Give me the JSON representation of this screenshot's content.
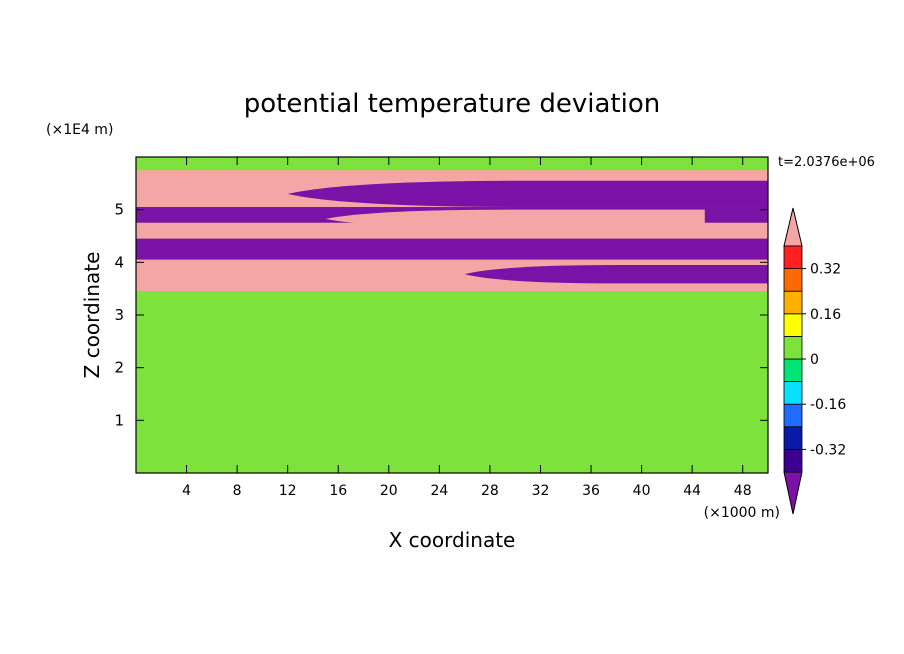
{
  "chart_data": {
    "type": "heatmap",
    "title": "potential temperature deviation",
    "xlabel": "X coordinate",
    "ylabel": "Z coordinate",
    "x_scale_note": "(×1000 m)",
    "y_scale_note": "(×1E4 m)",
    "time_label": "t=2.0376e+06",
    "xlim": [
      0,
      50
    ],
    "ylim": [
      0,
      6
    ],
    "x_ticks": [
      4,
      8,
      12,
      16,
      20,
      24,
      28,
      32,
      36,
      40,
      44,
      48
    ],
    "y_ticks": [
      1,
      2,
      3,
      4,
      5
    ],
    "colorbar": {
      "colors": [
        "#7a12a8",
        "#3b0090",
        "#0a1aa8",
        "#1f6cff",
        "#08e0ff",
        "#00e676",
        "#7ee23c",
        "#ffff00",
        "#ffb000",
        "#ff6a00",
        "#ff2020",
        "#f4a6a6"
      ],
      "labels": [
        "-0.32",
        "-0.16",
        "0",
        "0.16",
        "0.32"
      ],
      "label_levels": [
        -0.32,
        -0.16,
        0,
        0.16,
        0.32
      ],
      "range": [
        -0.48,
        0.48
      ]
    },
    "bands": [
      {
        "z": [
          5.75,
          6.0
        ],
        "level": 0.0
      },
      {
        "z": [
          5.45,
          5.75
        ],
        "level": 0.4
      },
      {
        "z": [
          5.05,
          5.45
        ],
        "level": 0.45
      },
      {
        "z": [
          4.75,
          5.05
        ],
        "level": -0.45
      },
      {
        "z": [
          4.45,
          4.75
        ],
        "level": 0.45
      },
      {
        "z": [
          4.05,
          4.45
        ],
        "level": -0.45
      },
      {
        "z": [
          3.85,
          4.05
        ],
        "level": 0.45
      },
      {
        "z": [
          3.55,
          3.85
        ],
        "level": 0.45
      },
      {
        "z": [
          3.45,
          3.55
        ],
        "level": 0.4
      },
      {
        "z": [
          0.62,
          3.45
        ],
        "level": 0.05
      },
      {
        "z": [
          0.0,
          0.62
        ],
        "level": 0.0
      }
    ],
    "features": [
      {
        "x": [
          12,
          50
        ],
        "z": [
          5.05,
          5.55
        ],
        "level": -0.45
      },
      {
        "x": [
          15,
          45
        ],
        "z": [
          4.65,
          5.0
        ],
        "level": 0.45
      },
      {
        "x": [
          26,
          50
        ],
        "z": [
          3.6,
          3.95
        ],
        "level": -0.45
      }
    ]
  }
}
